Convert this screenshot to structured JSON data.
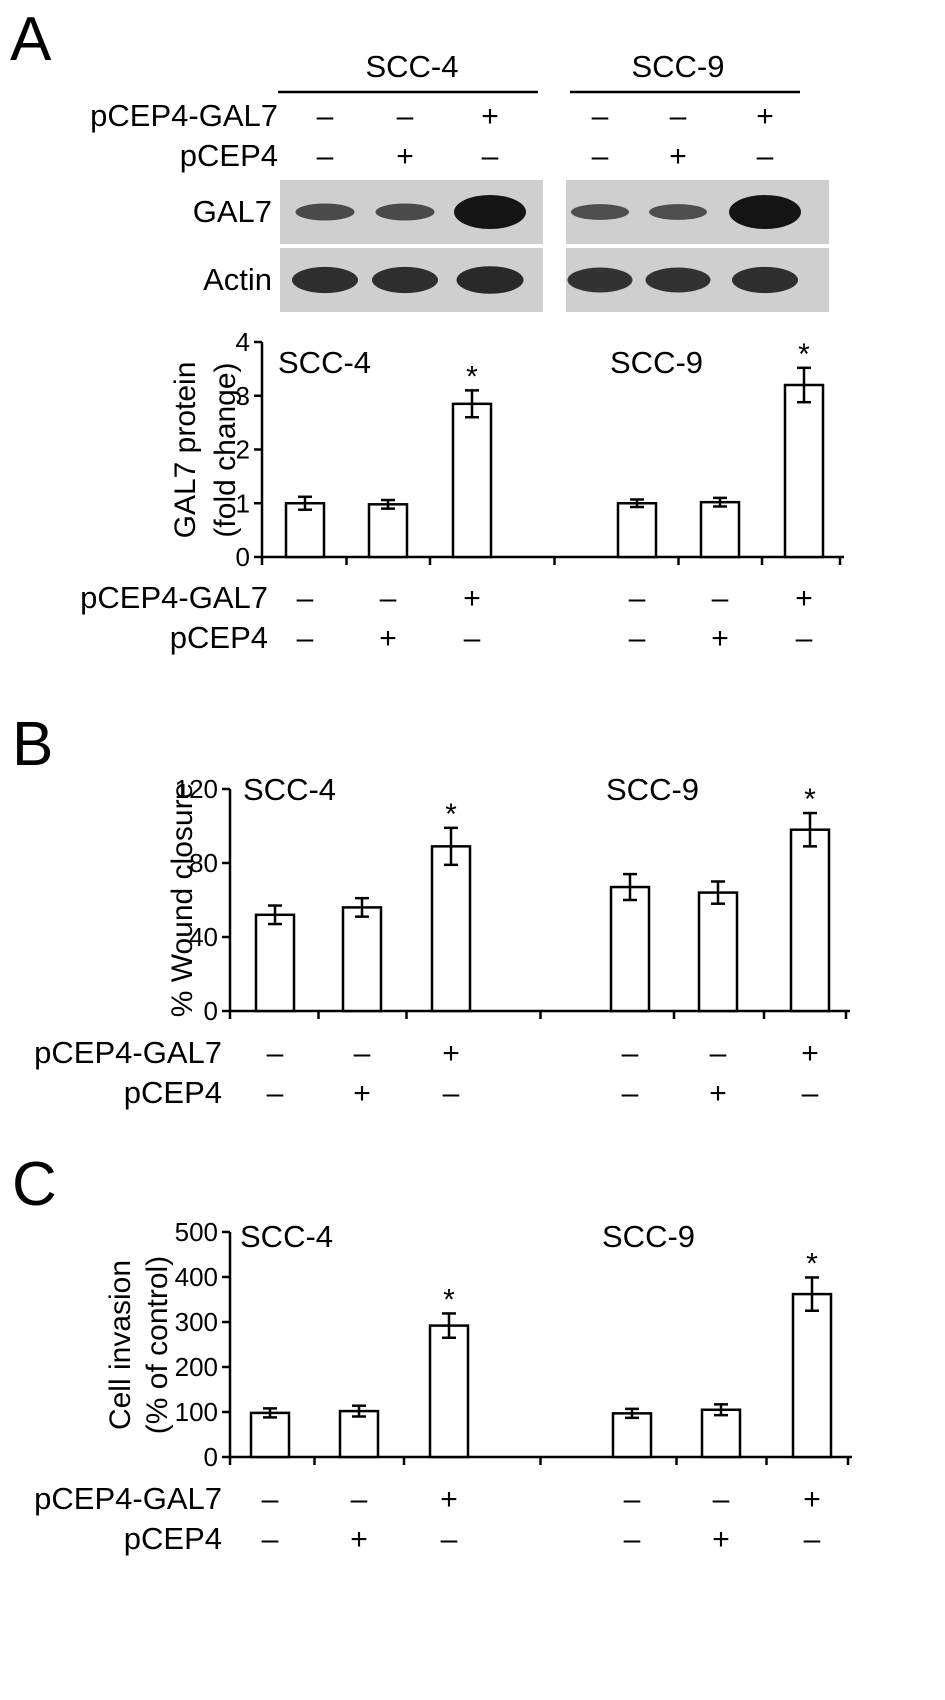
{
  "figure": {
    "panels": [
      "A",
      "B",
      "C"
    ],
    "cell_lines": [
      "SCC-4",
      "SCC-9"
    ],
    "treatment_rows": [
      {
        "label": "pCEP4-GAL7",
        "signs": [
          "–",
          "–",
          "+",
          "–",
          "–",
          "+"
        ]
      },
      {
        "label": "pCEP4",
        "signs": [
          "–",
          "+",
          "–",
          "–",
          "+",
          "–"
        ]
      }
    ],
    "significance_marker": "*",
    "western_blot": {
      "rows": [
        {
          "label": "GAL7",
          "band_intensity": [
            0.35,
            0.35,
            1.0,
            0.3,
            0.3,
            1.0
          ]
        },
        {
          "label": "Actin",
          "band_intensity": [
            0.7,
            0.7,
            0.75,
            0.65,
            0.65,
            0.7
          ]
        }
      ]
    }
  },
  "chart_data": [
    {
      "panel": "A",
      "type": "bar",
      "title": "",
      "xlabel": "",
      "ylabel": [
        "GAL7 protein",
        "(fold change)"
      ],
      "ylim": [
        0,
        4
      ],
      "yticks": [
        0,
        1,
        2,
        3,
        4
      ],
      "grid": false,
      "groups": [
        {
          "name": "SCC-4",
          "values": [
            1.0,
            0.98,
            2.85
          ],
          "errors": [
            0.12,
            0.08,
            0.25
          ],
          "significant": [
            false,
            false,
            true
          ]
        },
        {
          "name": "SCC-9",
          "values": [
            1.0,
            1.02,
            3.2
          ],
          "errors": [
            0.07,
            0.08,
            0.32
          ],
          "significant": [
            false,
            false,
            true
          ]
        }
      ]
    },
    {
      "panel": "B",
      "type": "bar",
      "title": "",
      "xlabel": "",
      "ylabel": [
        "% Wound closure"
      ],
      "ylim": [
        0,
        120
      ],
      "yticks": [
        0,
        40,
        80,
        120
      ],
      "grid": false,
      "groups": [
        {
          "name": "SCC-4",
          "values": [
            52,
            56,
            89
          ],
          "errors": [
            5,
            5,
            10
          ],
          "significant": [
            false,
            false,
            true
          ]
        },
        {
          "name": "SCC-9",
          "values": [
            67,
            64,
            98
          ],
          "errors": [
            7,
            6,
            9
          ],
          "significant": [
            false,
            false,
            true
          ]
        }
      ]
    },
    {
      "panel": "C",
      "type": "bar",
      "title": "",
      "xlabel": "",
      "ylabel": [
        "Cell invasion",
        "(% of control)"
      ],
      "ylim": [
        0,
        500
      ],
      "yticks": [
        0,
        100,
        200,
        300,
        400,
        500
      ],
      "grid": false,
      "groups": [
        {
          "name": "SCC-4",
          "values": [
            98,
            102,
            292
          ],
          "errors": [
            10,
            12,
            27
          ],
          "significant": [
            false,
            false,
            true
          ]
        },
        {
          "name": "SCC-9",
          "values": [
            97,
            105,
            362
          ],
          "errors": [
            10,
            12,
            37
          ],
          "significant": [
            false,
            false,
            true
          ]
        }
      ]
    }
  ]
}
